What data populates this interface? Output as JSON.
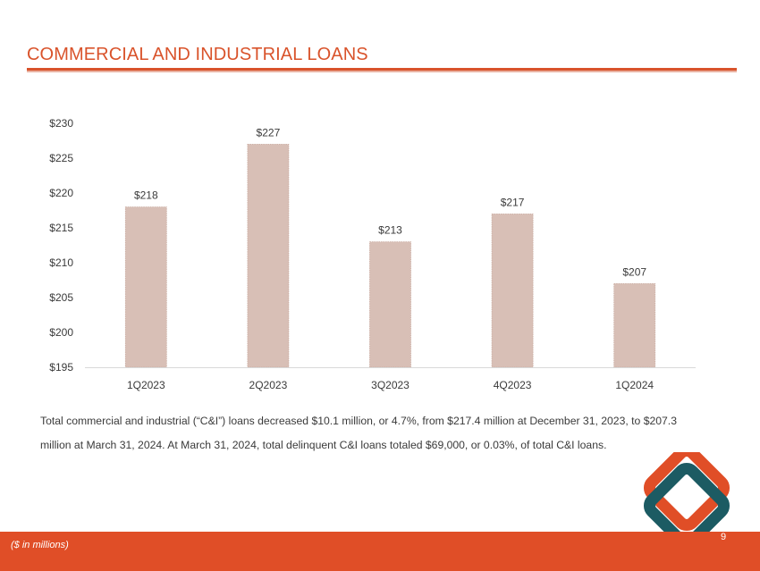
{
  "page": {
    "title": "COMMERCIAL AND INDUSTRIAL LOANS",
    "caption": "Total commercial and industrial (“C&I”) loans decreased $10.1 million, or 4.7%, from $217.4 million at December 31, 2023, to $207.3 million at March 31, 2024. At March 31, 2024, total delinquent C&I loans totaled $69,000, or 0.03%, of total C&I loans.",
    "footnote": "($ in millions)",
    "page_number": "9"
  },
  "colors": {
    "accent": "#d9532b",
    "footer": "#e04e27",
    "bar": "#d8bfb6",
    "logo_orange": "#e04e27",
    "logo_teal": "#1c5b63"
  },
  "chart_data": {
    "type": "bar",
    "title": "",
    "xlabel": "",
    "ylabel": "",
    "categories": [
      "1Q2023",
      "2Q2023",
      "3Q2023",
      "4Q2023",
      "1Q2024"
    ],
    "values": [
      218,
      227,
      213,
      217,
      207
    ],
    "data_labels": [
      "$218",
      "$227",
      "$213",
      "$217",
      "$207"
    ],
    "ylim": [
      195,
      230
    ],
    "yticks": [
      195,
      200,
      205,
      210,
      215,
      220,
      225,
      230
    ],
    "ytick_labels": [
      "$195",
      "$200",
      "$205",
      "$210",
      "$215",
      "$220",
      "$225",
      "$230"
    ],
    "grid": false,
    "legend": "none"
  }
}
